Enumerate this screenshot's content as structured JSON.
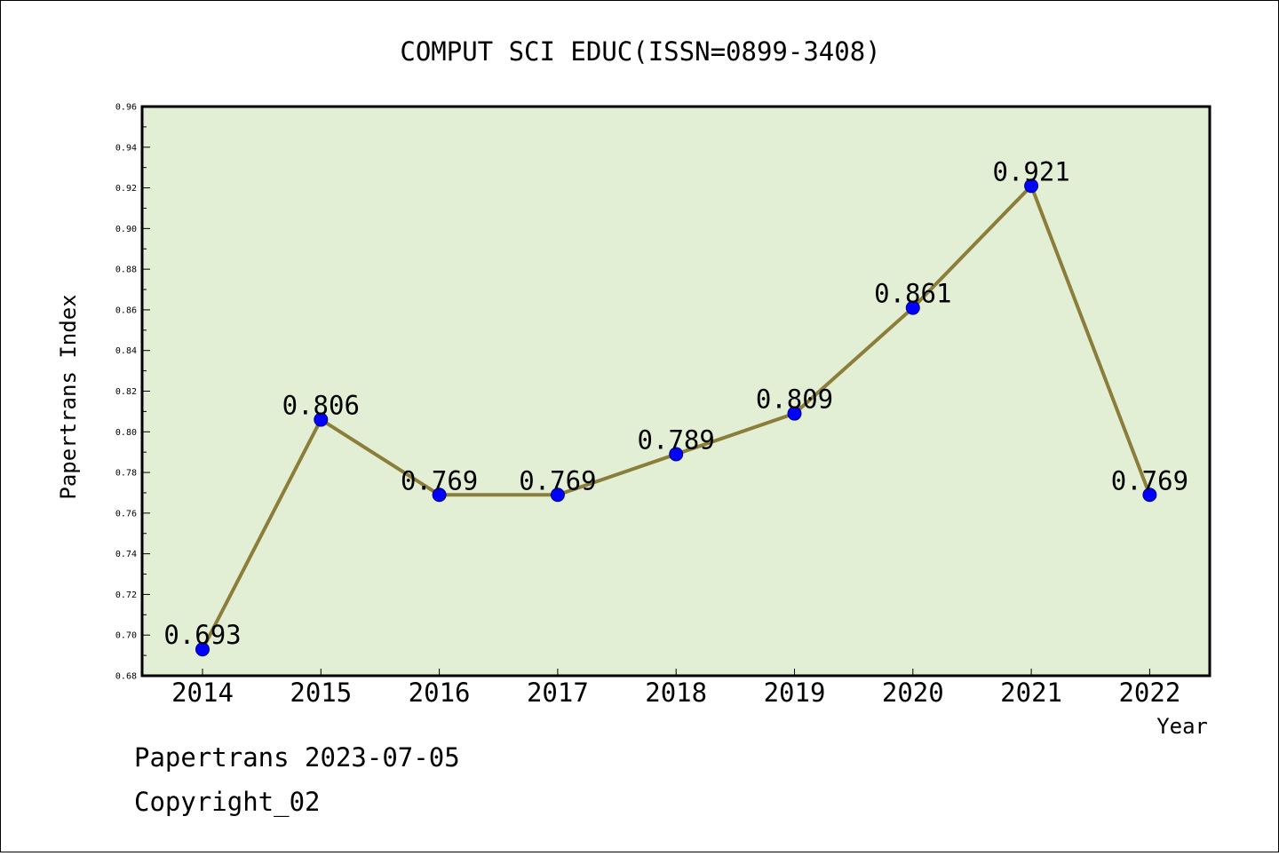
{
  "chart_data": {
    "type": "line",
    "title": "COMPUT SCI EDUC(ISSN=0899-3408)",
    "xlabel": "Year",
    "ylabel": "Papertrans Index",
    "categories": [
      "2014",
      "2015",
      "2016",
      "2017",
      "2018",
      "2019",
      "2020",
      "2021",
      "2022"
    ],
    "values": [
      0.693,
      0.806,
      0.769,
      0.769,
      0.789,
      0.809,
      0.861,
      0.921,
      0.769
    ],
    "value_labels": [
      "0.693",
      "0.806",
      "0.769",
      "0.769",
      "0.789",
      "0.809",
      "0.861",
      "0.921",
      "0.769"
    ],
    "ylim": [
      0.68,
      0.96
    ],
    "yticks": [
      "0.68",
      "0.70",
      "0.72",
      "0.74",
      "0.76",
      "0.78",
      "0.80",
      "0.82",
      "0.84",
      "0.86",
      "0.88",
      "0.90",
      "0.92",
      "0.94",
      "0.96"
    ],
    "grid": false,
    "legend": "none",
    "colors": {
      "plot_background": "#e2efd4",
      "line": "#8b7d3a",
      "marker": "#0000ff",
      "marker_edge": "#000080"
    }
  },
  "footer": {
    "source": "Papertrans 2023-07-05",
    "copyright": "Copyright_02"
  }
}
